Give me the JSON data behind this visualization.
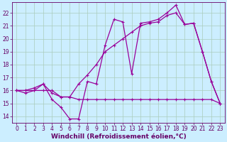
{
  "title": "",
  "xlabel": "Windchill (Refroidissement éolien,°C)",
  "background_color": "#cceeff",
  "grid_color": "#aaccbb",
  "line_color": "#990099",
  "xlim": [
    -0.5,
    23.5
  ],
  "ylim": [
    13.5,
    22.8
  ],
  "yticks": [
    14,
    15,
    16,
    17,
    18,
    19,
    20,
    21,
    22
  ],
  "xticks": [
    0,
    1,
    2,
    3,
    4,
    5,
    6,
    7,
    8,
    9,
    10,
    11,
    12,
    13,
    14,
    15,
    16,
    17,
    18,
    19,
    20,
    21,
    22,
    23
  ],
  "line1_x": [
    0,
    1,
    2,
    3,
    4,
    5,
    6,
    7,
    8,
    9,
    10,
    11,
    12,
    13,
    14,
    15,
    16,
    17,
    18,
    19,
    20,
    21,
    22,
    23
  ],
  "line1_y": [
    16.0,
    15.8,
    16.0,
    16.5,
    15.3,
    14.7,
    13.8,
    13.8,
    16.7,
    16.5,
    19.5,
    21.5,
    21.3,
    17.3,
    21.2,
    21.3,
    21.5,
    22.0,
    22.6,
    21.1,
    21.2,
    19.0,
    16.7,
    15.0
  ],
  "line2_x": [
    0,
    1,
    2,
    3,
    4,
    5,
    6,
    7,
    8,
    9,
    10,
    11,
    12,
    13,
    14,
    15,
    16,
    17,
    18,
    19,
    20,
    21,
    22,
    23
  ],
  "line2_y": [
    16.0,
    16.0,
    16.2,
    16.5,
    15.8,
    15.5,
    15.5,
    16.5,
    17.2,
    18.0,
    19.0,
    19.5,
    20.0,
    20.5,
    21.0,
    21.2,
    21.3,
    21.8,
    22.0,
    21.1,
    21.2,
    19.0,
    16.7,
    15.0
  ],
  "line3_x": [
    0,
    1,
    2,
    3,
    4,
    5,
    6,
    7,
    8,
    9,
    10,
    11,
    12,
    13,
    14,
    15,
    16,
    17,
    18,
    19,
    20,
    21,
    22,
    23
  ],
  "line3_y": [
    16.0,
    16.0,
    16.0,
    16.0,
    16.0,
    15.5,
    15.5,
    15.3,
    15.3,
    15.3,
    15.3,
    15.3,
    15.3,
    15.3,
    15.3,
    15.3,
    15.3,
    15.3,
    15.3,
    15.3,
    15.3,
    15.3,
    15.3,
    15.0
  ],
  "font_color": "#660066",
  "tick_fontsize": 5.5,
  "label_fontsize": 6.5
}
